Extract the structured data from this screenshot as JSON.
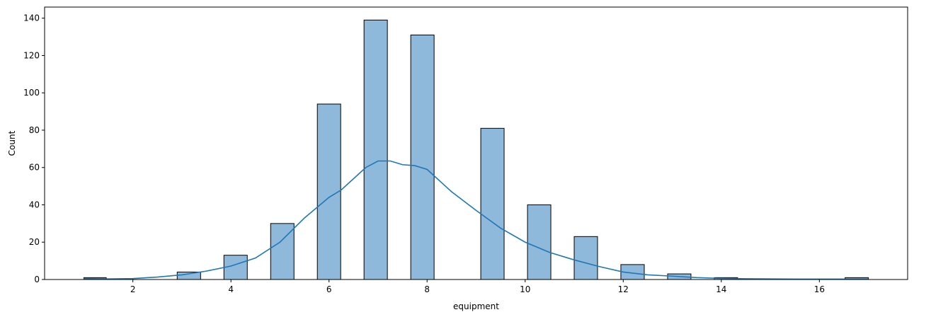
{
  "chart_data": {
    "type": "bar",
    "title": "",
    "xlabel": "equipment",
    "ylabel": "Count",
    "xlim": [
      0.2,
      17.8
    ],
    "ylim": [
      0,
      145.95
    ],
    "xticks": [
      2,
      4,
      6,
      8,
      10,
      12,
      14,
      16
    ],
    "yticks": [
      0,
      20,
      40,
      60,
      80,
      100,
      120,
      140
    ],
    "bins": [
      {
        "x0": 1.0,
        "x1": 1.457,
        "count": 1
      },
      {
        "x0": 2.904,
        "x1": 3.381,
        "count": 4
      },
      {
        "x0": 3.857,
        "x1": 4.333,
        "count": 13
      },
      {
        "x0": 4.81,
        "x1": 5.286,
        "count": 30
      },
      {
        "x0": 5.762,
        "x1": 6.238,
        "count": 94
      },
      {
        "x0": 6.714,
        "x1": 7.19,
        "count": 139
      },
      {
        "x0": 7.667,
        "x1": 8.143,
        "count": 131
      },
      {
        "x0": 9.095,
        "x1": 9.571,
        "count": 81
      },
      {
        "x0": 10.048,
        "x1": 10.524,
        "count": 40
      },
      {
        "x0": 11.0,
        "x1": 11.476,
        "count": 23
      },
      {
        "x0": 11.952,
        "x1": 12.429,
        "count": 8
      },
      {
        "x0": 12.905,
        "x1": 13.381,
        "count": 3
      },
      {
        "x0": 13.857,
        "x1": 14.333,
        "count": 1
      },
      {
        "x0": 16.524,
        "x1": 17.0,
        "count": 1
      }
    ],
    "kde": {
      "x": [
        1.0,
        1.5,
        2.0,
        2.5,
        3.0,
        3.5,
        4.0,
        4.5,
        5.0,
        5.5,
        6.0,
        6.25,
        6.5,
        6.75,
        7.0,
        7.25,
        7.5,
        7.75,
        8.0,
        8.25,
        8.5,
        9.0,
        9.5,
        10.0,
        10.5,
        11.0,
        11.5,
        12.0,
        12.5,
        13.0,
        13.5,
        14.0,
        14.5,
        15.0,
        15.5,
        16.0,
        16.5,
        17.0
      ],
      "y": [
        0.5,
        0.3,
        0.5,
        1.3,
        2.5,
        4.5,
        7.2,
        11.5,
        20,
        33,
        44,
        48,
        54,
        60,
        63.5,
        63.5,
        61.5,
        61,
        59,
        53,
        47,
        37,
        27.5,
        20,
        14.5,
        10.5,
        7,
        4,
        2.5,
        1.8,
        1.0,
        0.6,
        0.4,
        0.3,
        0.2,
        0.2,
        0.2,
        0.2
      ]
    },
    "colors": {
      "bar_fill": "#8fb9db",
      "bar_edge": "#000000",
      "kde_line": "#1f77b4",
      "axes": "#000000"
    },
    "grid": false,
    "legend": "none"
  }
}
